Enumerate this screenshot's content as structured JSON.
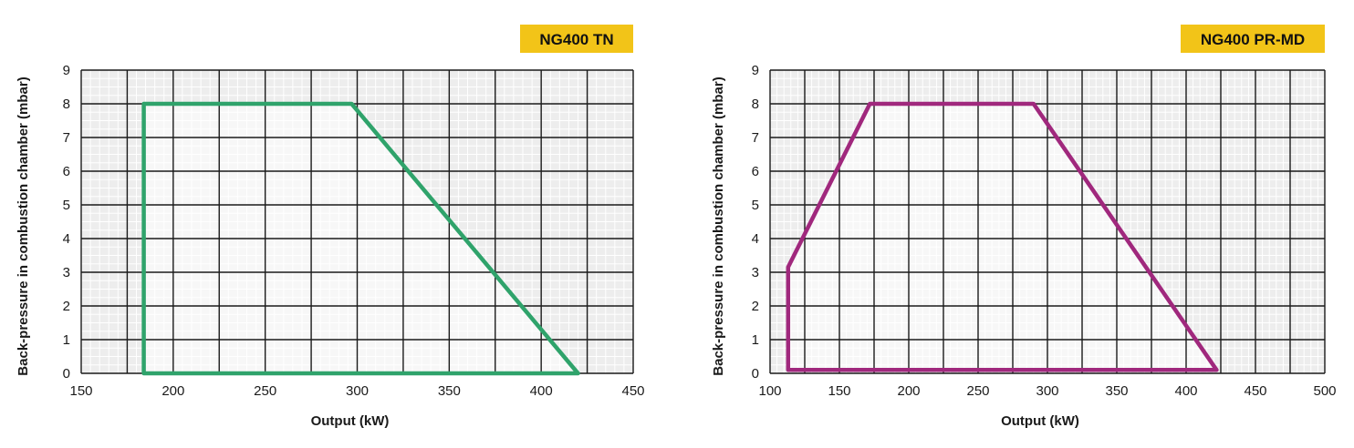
{
  "colors": {
    "badge_bg": "#F2C418",
    "plot_bg": "#EDEDED",
    "grid_major": "#1A1A1A",
    "grid_minor": "#FFFFFF",
    "region_fill": "#F7F7F7",
    "tn_line": "#2FA36B",
    "prmd_line": "#A0287D"
  },
  "chart_data": [
    {
      "type": "area",
      "title": "NG400 TN",
      "xlabel": "Output (kW)",
      "ylabel": "Back-pressure in combustion chamber (mbar)",
      "xlim": [
        150,
        450
      ],
      "ylim": [
        0,
        9
      ],
      "xticks": [
        150,
        200,
        250,
        300,
        350,
        400,
        450
      ],
      "yticks": [
        0,
        1,
        2,
        3,
        4,
        5,
        6,
        7,
        8,
        9
      ],
      "grid": true,
      "series": [
        {
          "x": [
            184,
            184,
            297,
            420,
            184
          ],
          "y": [
            0,
            8,
            8,
            0,
            0
          ]
        }
      ]
    },
    {
      "type": "area",
      "title": "NG400 PR-MD",
      "xlabel": "Output (kW)",
      "ylabel": "Back-pressure in combustion chamber (mbar)",
      "xlim": [
        100,
        500
      ],
      "ylim": [
        0,
        9
      ],
      "xticks": [
        100,
        150,
        200,
        250,
        300,
        350,
        400,
        450,
        500
      ],
      "yticks": [
        0,
        1,
        2,
        3,
        4,
        5,
        6,
        7,
        8,
        9
      ],
      "grid": true,
      "series": [
        {
          "x": [
            113,
            113,
            172,
            290,
            422,
            113
          ],
          "y": [
            0.1,
            3.15,
            8,
            8,
            0.1,
            0.1
          ]
        }
      ]
    }
  ]
}
